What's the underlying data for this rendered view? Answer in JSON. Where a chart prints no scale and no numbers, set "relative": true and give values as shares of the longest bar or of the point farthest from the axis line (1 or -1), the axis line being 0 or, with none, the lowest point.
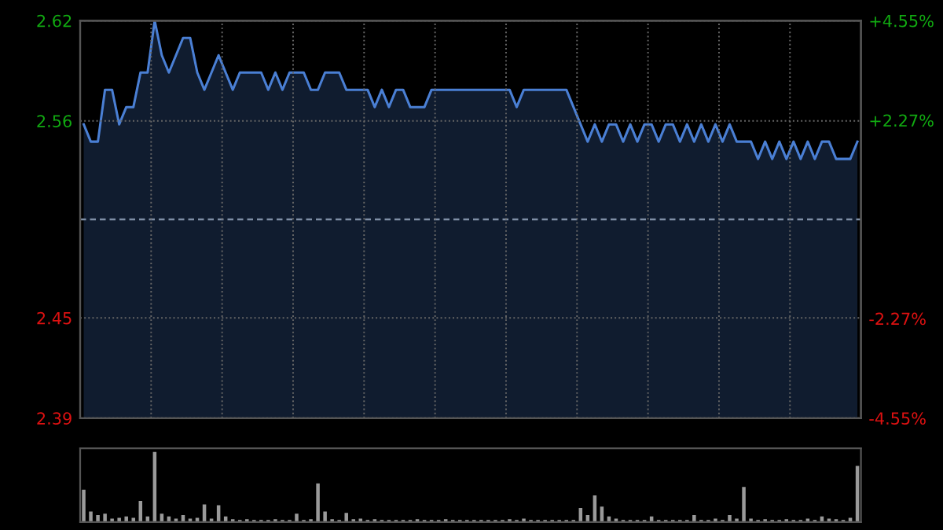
{
  "chart_data": [
    {
      "type": "area",
      "categories": [
        null,
        null,
        null,
        null,
        null,
        null,
        null,
        null,
        null,
        null,
        null,
        null,
        null,
        null,
        null,
        null,
        null,
        null,
        null,
        null,
        null,
        null,
        null,
        null,
        null,
        null,
        null,
        null,
        null,
        null,
        null,
        null,
        null,
        null,
        null,
        null,
        null,
        null,
        null,
        null,
        null,
        null,
        null,
        null,
        null,
        null,
        null,
        null,
        null,
        null,
        null,
        null,
        null,
        null,
        null,
        null,
        null,
        null,
        null,
        null,
        null,
        null,
        null,
        null,
        null,
        null,
        null,
        null,
        null,
        null,
        null,
        null,
        null,
        null,
        null,
        null,
        null,
        null,
        null,
        null,
        null,
        null,
        null,
        null,
        null,
        null,
        null,
        null,
        null,
        null,
        null,
        null,
        null,
        null,
        null,
        null,
        null,
        null,
        null,
        null,
        null,
        null,
        null,
        null,
        null,
        null,
        null,
        null,
        null,
        null
      ],
      "series": [
        {
          "color": "#4a7fd4",
          "values": [
            2.56,
            2.55,
            2.55,
            2.58,
            2.58,
            2.56,
            2.57,
            2.57,
            2.59,
            2.59,
            2.62,
            2.6,
            2.59,
            2.6,
            2.61,
            2.61,
            2.59,
            2.58,
            2.59,
            2.6,
            2.59,
            2.58,
            2.59,
            2.59,
            2.59,
            2.59,
            2.58,
            2.59,
            2.58,
            2.59,
            2.59,
            2.59,
            2.58,
            2.58,
            2.59,
            2.59,
            2.59,
            2.58,
            2.58,
            2.58,
            2.58,
            2.57,
            2.58,
            2.57,
            2.58,
            2.58,
            2.57,
            2.57,
            2.57,
            2.58,
            2.58,
            2.58,
            2.58,
            2.58,
            2.58,
            2.58,
            2.58,
            2.58,
            2.58,
            2.58,
            2.58,
            2.57,
            2.58,
            2.58,
            2.58,
            2.58,
            2.58,
            2.58,
            2.58,
            2.57,
            2.56,
            2.55,
            2.56,
            2.55,
            2.56,
            2.56,
            2.55,
            2.56,
            2.55,
            2.56,
            2.56,
            2.55,
            2.56,
            2.56,
            2.55,
            2.56,
            2.55,
            2.56,
            2.55,
            2.56,
            2.55,
            2.56,
            2.55,
            2.55,
            2.55,
            2.54,
            2.55,
            2.54,
            2.55,
            2.54,
            2.55,
            2.54,
            2.55,
            2.54,
            2.55,
            2.55,
            2.54,
            2.54,
            2.54,
            2.55
          ]
        }
      ],
      "ylim": [
        2.39,
        2.62
      ],
      "yticks": [
        2.62,
        {
          "value": 2.562,
          "label": "2.56"
        },
        {
          "value": 2.448,
          "label": "2.45"
        },
        2.39
      ],
      "y2lim": [
        -4.55,
        4.55
      ],
      "y2ticks": [
        {
          "value": 4.55,
          "label": "+4.55%"
        },
        {
          "value": 2.27,
          "label": "+2.27%"
        },
        {
          "value": -2.27,
          "label": "-2.27%"
        },
        {
          "value": -4.55,
          "label": "-4.55%"
        }
      ],
      "ref_lines": [
        {
          "axis": "y",
          "value": 2.505,
          "color": "#7f8fa6",
          "line_style": "dashed"
        }
      ],
      "grid": true,
      "tick_labels": "y"
    },
    {
      "type": "bar",
      "relative": true,
      "tick_labels": false,
      "categories": [
        null,
        null,
        null,
        null,
        null,
        null,
        null,
        null,
        null,
        null,
        null,
        null,
        null,
        null,
        null,
        null,
        null,
        null,
        null,
        null,
        null,
        null,
        null,
        null,
        null,
        null,
        null,
        null,
        null,
        null,
        null,
        null,
        null,
        null,
        null,
        null,
        null,
        null,
        null,
        null,
        null,
        null,
        null,
        null,
        null,
        null,
        null,
        null,
        null,
        null,
        null,
        null,
        null,
        null,
        null,
        null,
        null,
        null,
        null,
        null,
        null,
        null,
        null,
        null,
        null,
        null,
        null,
        null,
        null,
        null,
        null,
        null,
        null,
        null,
        null,
        null,
        null,
        null,
        null,
        null,
        null,
        null,
        null,
        null,
        null,
        null,
        null,
        null,
        null,
        null,
        null,
        null,
        null,
        null,
        null,
        null,
        null,
        null,
        null,
        null,
        null,
        null,
        null,
        null,
        null,
        null,
        null,
        null,
        null,
        null
      ],
      "series": [
        {
          "color": "#9a9a9a",
          "values": [
            0.46,
            0.15,
            0.1,
            0.12,
            0.05,
            0.06,
            0.08,
            0.06,
            0.3,
            0.08,
            1,
            0.12,
            0.08,
            0.05,
            0.1,
            0.05,
            0.06,
            0.25,
            0.05,
            0.24,
            0.08,
            0.04,
            0.03,
            0.04,
            0.03,
            0.03,
            0.03,
            0.04,
            0.03,
            0.03,
            0.12,
            0.03,
            0.04,
            0.55,
            0.15,
            0.04,
            0.03,
            0.13,
            0.04,
            0.05,
            0.03,
            0.04,
            0.03,
            0.03,
            0.03,
            0.03,
            0.03,
            0.04,
            0.03,
            0.03,
            0.03,
            0.04,
            0.03,
            0.03,
            0.03,
            0.03,
            0.03,
            0.03,
            0.03,
            0.03,
            0.04,
            0.03,
            0.05,
            0.03,
            0.03,
            0.03,
            0.03,
            0.03,
            0.03,
            0.03,
            0.2,
            0.1,
            0.38,
            0.22,
            0.08,
            0.05,
            0.03,
            0.03,
            0.03,
            0.03,
            0.08,
            0.03,
            0.03,
            0.03,
            0.03,
            0.03,
            0.1,
            0.03,
            0.03,
            0.05,
            0.03,
            0.1,
            0.05,
            0.5,
            0.05,
            0.03,
            0.04,
            0.03,
            0.03,
            0.04,
            0.03,
            0.03,
            0.05,
            0.03,
            0.08,
            0.05,
            0.04,
            0.03,
            0.06,
            0.8
          ]
        }
      ]
    }
  ]
}
